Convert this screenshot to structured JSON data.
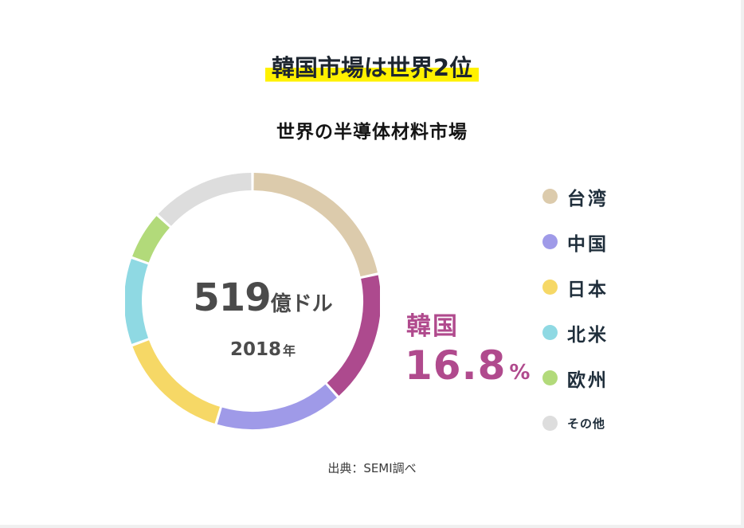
{
  "headline": "韓国市場は世界2位",
  "chart_data": {
    "type": "pie",
    "title": "世界の半導体材料市場",
    "center": {
      "total_value": "519",
      "total_unit": "億ドル",
      "year_value": "2018",
      "year_unit": "年"
    },
    "slices": [
      {
        "label": "台湾",
        "value": 21.6,
        "color": "#dccbac"
      },
      {
        "label": "韓国",
        "value": 16.8,
        "color": "#ad4a8e"
      },
      {
        "label": "中国",
        "value": 16.2,
        "color": "#9f9ae8"
      },
      {
        "label": "日本",
        "value": 14.8,
        "color": "#f6d866"
      },
      {
        "label": "北米",
        "value": 11.1,
        "color": "#8fd9e3"
      },
      {
        "label": "欧州",
        "value": 6.2,
        "color": "#b2da7a"
      },
      {
        "label": "その他",
        "value": 13.3,
        "color": "#dddddd"
      }
    ],
    "highlight": {
      "label": "韓国",
      "value": "16.8",
      "unit": "%"
    },
    "legend": [
      {
        "label": "台湾",
        "color": "#dccbac"
      },
      {
        "label": "中国",
        "color": "#9f9ae8"
      },
      {
        "label": "日本",
        "color": "#f6d866"
      },
      {
        "label": "北米",
        "color": "#8fd9e3"
      },
      {
        "label": "欧州",
        "color": "#b2da7a"
      },
      {
        "label": "その他",
        "color": "#dddddd"
      }
    ],
    "legend_position": "right"
  },
  "source": "出典：SEMI調べ"
}
